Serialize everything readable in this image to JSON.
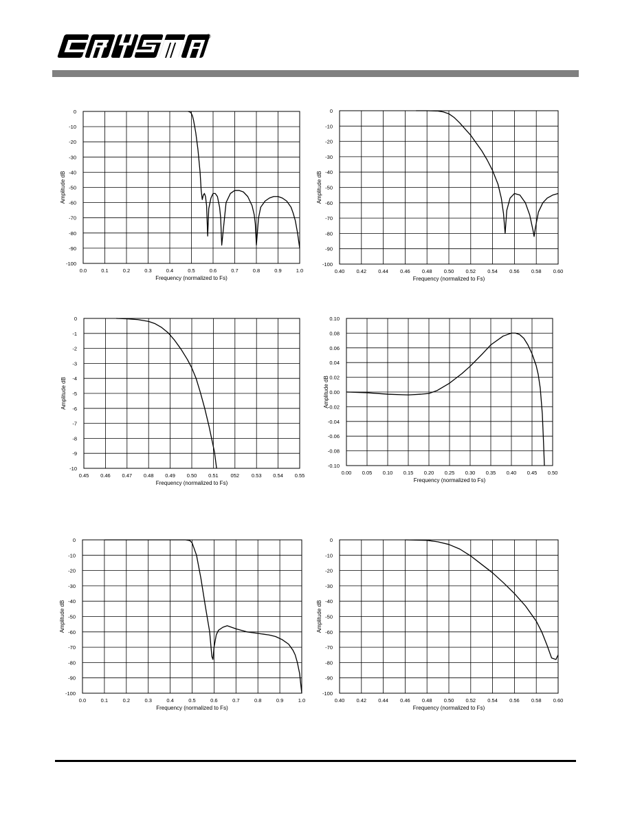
{
  "header": {
    "brand": "CRYSTAL",
    "registered_mark": "®",
    "rule_color": "#808080"
  },
  "chart_data": [
    {
      "id": "c1",
      "type": "line",
      "xlabel": "Frequency (normalized to Fs)",
      "ylabel": "Amplitude dB",
      "xlim": [
        0.0,
        1.0
      ],
      "ylim": [
        -100,
        0
      ],
      "xticks": [
        "0.0",
        "0.1",
        "0.2",
        "0.3",
        "0.4",
        "0.5",
        "0.6",
        "0.7",
        "0.8",
        "0.9",
        "1.0"
      ],
      "yticks": [
        "0",
        "-10",
        "-20",
        "-30",
        "-40",
        "-50",
        "-60",
        "-70",
        "-80",
        "-90",
        "-100"
      ],
      "grid": true,
      "series": [
        {
          "x": [
            0.485,
            0.495,
            0.5,
            0.505,
            0.51,
            0.52,
            0.53,
            0.54,
            0.545,
            0.55,
            0.555,
            0.56,
            0.565,
            0.57,
            0.575,
            0.58,
            0.59,
            0.6,
            0.61,
            0.62,
            0.63,
            0.635,
            0.64,
            0.66,
            0.68,
            0.7,
            0.72,
            0.74,
            0.76,
            0.78,
            0.79,
            0.795,
            0.8,
            0.81,
            0.82,
            0.84,
            0.86,
            0.88,
            0.9,
            0.92,
            0.94,
            0.96,
            0.97,
            0.98,
            0.99,
            0.995,
            1.0
          ],
          "y": [
            0,
            -0.5,
            -1.5,
            -3,
            -6,
            -14,
            -25,
            -40,
            -52,
            -58,
            -55,
            -54,
            -56,
            -62,
            -82,
            -64,
            -57,
            -54,
            -54,
            -56,
            -63,
            -70,
            -88,
            -60,
            -54,
            -52,
            -52,
            -53,
            -56,
            -62,
            -68,
            -74,
            -88,
            -70,
            -63,
            -59,
            -57,
            -56,
            -56,
            -57,
            -59,
            -63,
            -67,
            -72,
            -80,
            -85,
            -90
          ]
        }
      ]
    },
    {
      "id": "c2",
      "type": "line",
      "xlabel": "Frequency (normalized to Fs)",
      "ylabel": "Amplitude dB",
      "xlim": [
        0.4,
        0.6
      ],
      "ylim": [
        -100,
        0
      ],
      "xticks": [
        "0.40",
        "0.42",
        "0.44",
        "0.46",
        "0.48",
        "0.50",
        "0.52",
        "0.54",
        "0.56",
        "0.58",
        "0.60"
      ],
      "yticks": [
        "0",
        "-10",
        "-20",
        "-30",
        "-40",
        "-50",
        "-60",
        "-70",
        "-80",
        "-90",
        "-100"
      ],
      "grid": true,
      "series": [
        {
          "x": [
            0.47,
            0.48,
            0.49,
            0.495,
            0.5,
            0.505,
            0.51,
            0.515,
            0.52,
            0.525,
            0.53,
            0.535,
            0.54,
            0.545,
            0.548,
            0.55,
            0.5515,
            0.553,
            0.556,
            0.56,
            0.565,
            0.57,
            0.574,
            0.577,
            0.578,
            0.579,
            0.582,
            0.586,
            0.59,
            0.595,
            0.6
          ],
          "y": [
            0,
            0,
            -0.2,
            -0.8,
            -2,
            -4.5,
            -8,
            -12,
            -16,
            -21,
            -26,
            -32,
            -39,
            -48,
            -57,
            -67,
            -80,
            -65,
            -57,
            -54,
            -55,
            -60,
            -68,
            -78,
            -82,
            -77,
            -66,
            -60,
            -57,
            -55,
            -54
          ]
        }
      ]
    },
    {
      "id": "c3",
      "type": "line",
      "xlabel": "Frequency (normalized to Fs)",
      "ylabel": "Amplitude dB",
      "xlim": [
        0.45,
        0.55
      ],
      "ylim": [
        -10,
        0
      ],
      "xticks": [
        "0.45",
        "0.46",
        "0.47",
        "0.48",
        "0.49",
        "0.50",
        "0.51",
        "052",
        "0.53",
        "0.54",
        "0.55"
      ],
      "yticks": [
        "0",
        "-1",
        "-2",
        "-3",
        "-4",
        "-5",
        "-6",
        "-7",
        "-8",
        "-9",
        "-10"
      ],
      "grid": true,
      "series": [
        {
          "x": [
            0.465,
            0.47,
            0.475,
            0.48,
            0.483,
            0.486,
            0.489,
            0.492,
            0.495,
            0.498,
            0.5,
            0.502,
            0.504,
            0.506,
            0.508,
            0.5105,
            0.5115
          ],
          "y": [
            0,
            -0.03,
            -0.08,
            -0.2,
            -0.35,
            -0.6,
            -0.95,
            -1.45,
            -2.05,
            -2.75,
            -3.3,
            -4.0,
            -4.95,
            -6.0,
            -7.2,
            -8.9,
            -10
          ]
        }
      ]
    },
    {
      "id": "c4",
      "type": "line",
      "xlabel": "Frequency (normalized to Fs)",
      "ylabel": "Amplitude dB",
      "xlim": [
        0.0,
        0.5
      ],
      "ylim": [
        -0.1,
        0.1
      ],
      "xticks": [
        "0.00",
        "0.05",
        "0.10",
        "0.15",
        "0.20",
        "0.25",
        "0.30",
        "0.35",
        "0.40",
        "0.45",
        "0.50"
      ],
      "yticks": [
        "0.10",
        "0.08",
        "0.06",
        "0.04",
        "0.02",
        "0.00",
        "-0.02",
        "-0.04",
        "-0.06",
        "-0.08",
        "-0.10"
      ],
      "grid": true,
      "series": [
        {
          "x": [
            0.0,
            0.05,
            0.1,
            0.15,
            0.18,
            0.2,
            0.22,
            0.25,
            0.28,
            0.3,
            0.33,
            0.35,
            0.38,
            0.4,
            0.41,
            0.42,
            0.43,
            0.44,
            0.45,
            0.46,
            0.465,
            0.47,
            0.475,
            0.478,
            0.48
          ],
          "y": [
            0,
            -0.001,
            -0.003,
            -0.004,
            -0.003,
            -0.002,
            0.002,
            0.012,
            0.025,
            0.035,
            0.052,
            0.064,
            0.076,
            0.08,
            0.08,
            0.078,
            0.073,
            0.064,
            0.052,
            0.036,
            0.024,
            0.005,
            -0.03,
            -0.07,
            -0.1
          ]
        }
      ]
    },
    {
      "id": "c5",
      "type": "line",
      "xlabel": "Frequency (normalized to Fs)",
      "ylabel": "Amplitude dB",
      "xlim": [
        0.0,
        1.0
      ],
      "ylim": [
        -100,
        0
      ],
      "xticks": [
        "0.0",
        "0.1",
        "0.2",
        "0.3",
        "0.4",
        "0.5",
        "0.6",
        "0.7",
        "0.8",
        "0.9",
        "1.0"
      ],
      "yticks": [
        "0",
        "-10",
        "-20",
        "-30",
        "-40",
        "-50",
        "-60",
        "-70",
        "-80",
        "-90",
        "-100"
      ],
      "grid": true,
      "series": [
        {
          "x": [
            0.1,
            0.3,
            0.47,
            0.49,
            0.5,
            0.52,
            0.54,
            0.56,
            0.58,
            0.585,
            0.59,
            0.595,
            0.6,
            0.61,
            0.62,
            0.64,
            0.66,
            0.7,
            0.75,
            0.8,
            0.85,
            0.88,
            0.91,
            0.94,
            0.96,
            0.97,
            0.98,
            0.99,
            1.0
          ],
          "y": [
            0,
            0,
            0,
            -0.5,
            -2,
            -10,
            -25,
            -43,
            -60,
            -68,
            -76,
            -78,
            -70,
            -62,
            -59,
            -57,
            -56,
            -58,
            -60,
            -61,
            -62,
            -63,
            -65,
            -68,
            -72,
            -75,
            -80,
            -87,
            -100
          ]
        }
      ]
    },
    {
      "id": "c6",
      "type": "line",
      "xlabel": "Frequency (normalized to Fs)",
      "ylabel": "Amplitude dB",
      "xlim": [
        0.4,
        0.6
      ],
      "ylim": [
        -100,
        0
      ],
      "xticks": [
        "0.40",
        "0.42",
        "0.44",
        "0.46",
        "0.48",
        "0.50",
        "0.52",
        "0.54",
        "0.56",
        "0.58",
        "0.60"
      ],
      "yticks": [
        "0",
        "-10",
        "-20",
        "-30",
        "-40",
        "-50",
        "-60",
        "-70",
        "-80",
        "-90",
        "-100"
      ],
      "grid": true,
      "series": [
        {
          "x": [
            0.46,
            0.48,
            0.49,
            0.5,
            0.51,
            0.52,
            0.53,
            0.54,
            0.55,
            0.56,
            0.57,
            0.58,
            0.585,
            0.59,
            0.594,
            0.598,
            0.6
          ],
          "y": [
            0,
            -0.3,
            -1.3,
            -3,
            -6,
            -10.5,
            -16,
            -21.5,
            -28,
            -35,
            -43,
            -53,
            -60,
            -69,
            -77,
            -78,
            -75
          ]
        }
      ]
    }
  ]
}
